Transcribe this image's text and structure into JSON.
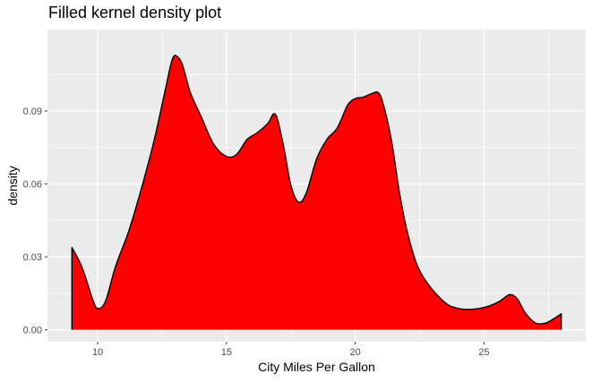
{
  "chart_data": {
    "type": "area",
    "title": "Filled kernel density plot",
    "xlabel": "City Miles Per Gallon",
    "ylabel": "density",
    "xlim": [
      8.05,
      28.95
    ],
    "ylim": [
      -0.0049,
      0.1235
    ],
    "x_ticks": [
      10,
      15,
      20,
      25
    ],
    "x_tick_labels": [
      "10",
      "15",
      "20",
      "25"
    ],
    "y_ticks": [
      0.0,
      0.03,
      0.06,
      0.09
    ],
    "y_tick_labels": [
      "0.00",
      "0.03",
      "0.06",
      "0.09"
    ],
    "grid": true,
    "fill_color": "#ff0000",
    "line_color": "#000000",
    "panel_color": "#ebebeb",
    "series": [
      {
        "x": [
          9.0,
          9.4,
          9.8,
          10.0,
          10.3,
          10.7,
          11.2,
          11.7,
          12.2,
          12.6,
          12.9,
          13.1,
          13.3,
          13.6,
          14.0,
          14.5,
          15.0,
          15.4,
          15.8,
          16.2,
          16.6,
          16.9,
          17.2,
          17.5,
          17.8,
          18.1,
          18.5,
          18.9,
          19.3,
          19.7,
          20.0,
          20.3,
          20.6,
          20.9,
          21.1,
          21.4,
          21.7,
          22.0,
          22.4,
          22.8,
          23.2,
          23.6,
          24.0,
          24.4,
          24.8,
          25.2,
          25.6,
          26.0,
          26.3,
          26.6,
          27.0,
          27.4,
          27.8,
          28.0
        ],
        "y": [
          0.0339,
          0.0255,
          0.0126,
          0.0088,
          0.0117,
          0.0263,
          0.0404,
          0.0582,
          0.0783,
          0.0975,
          0.1113,
          0.1123,
          0.1087,
          0.0975,
          0.0881,
          0.0764,
          0.0713,
          0.0722,
          0.0783,
          0.0811,
          0.0848,
          0.0886,
          0.0764,
          0.0595,
          0.0525,
          0.0563,
          0.0703,
          0.0783,
          0.083,
          0.0923,
          0.0951,
          0.0956,
          0.097,
          0.0975,
          0.0923,
          0.0783,
          0.0576,
          0.0412,
          0.0267,
          0.0192,
          0.0141,
          0.0103,
          0.0088,
          0.0084,
          0.0088,
          0.0098,
          0.0117,
          0.0145,
          0.0126,
          0.007,
          0.0028,
          0.0028,
          0.0052,
          0.0066
        ]
      }
    ]
  }
}
